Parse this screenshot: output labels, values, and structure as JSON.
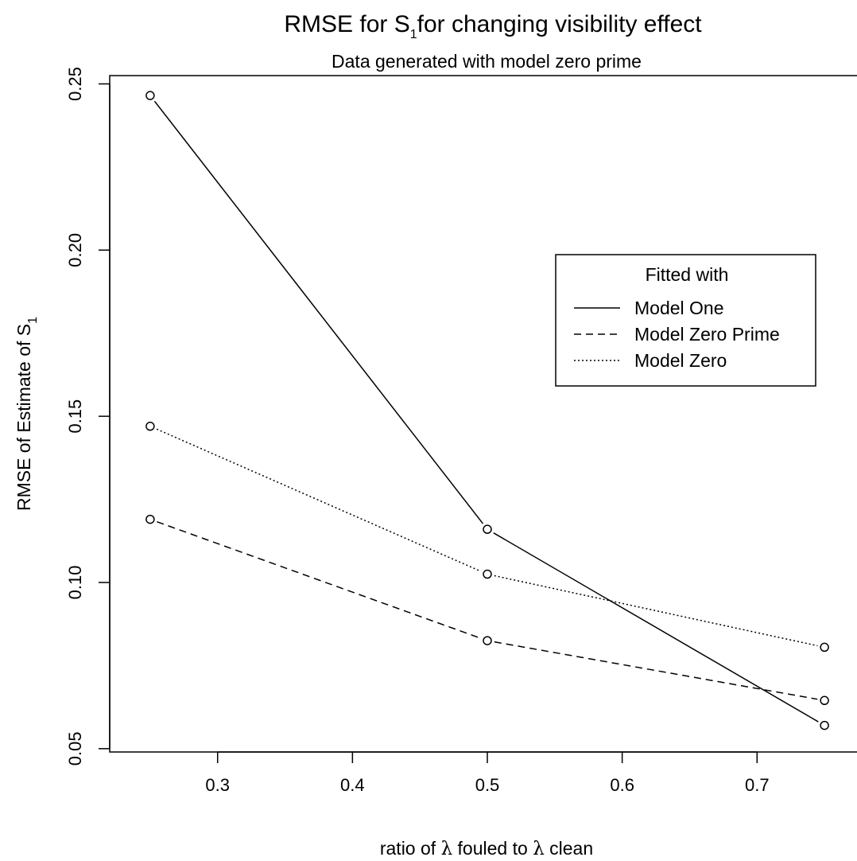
{
  "chart_data": {
    "type": "line",
    "title_parts": [
      "RMSE for S",
      "1",
      "for changing visibility effect"
    ],
    "subtitle": "Data generated with model zero prime",
    "xlabel_parts": [
      "ratio of ",
      "λ",
      " fouled to ",
      "λ",
      " clean"
    ],
    "ylabel_parts": [
      "RMSE of Estimate of S",
      "1"
    ],
    "x": [
      0.25,
      0.5,
      0.75
    ],
    "xlim": [
      0.22,
      0.78
    ],
    "ylim": [
      0.049,
      0.2525
    ],
    "xticks": [
      0.3,
      0.4,
      0.5,
      0.6,
      0.7
    ],
    "xtick_labels": [
      "0.3",
      "0.4",
      "0.5",
      "0.6",
      "0.7"
    ],
    "yticks": [
      0.05,
      0.1,
      0.15,
      0.2,
      0.25
    ],
    "ytick_labels": [
      "0.05",
      "0.10",
      "0.15",
      "0.20",
      "0.25"
    ],
    "series": [
      {
        "name": "Model One",
        "values": [
          0.2465,
          0.116,
          0.057
        ],
        "dash": "solid"
      },
      {
        "name": "Model Zero Prime",
        "values": [
          0.119,
          0.0825,
          0.0645
        ],
        "dash": "dashed"
      },
      {
        "name": "Model Zero",
        "values": [
          0.147,
          0.1025,
          0.0805
        ],
        "dash": "dotted"
      }
    ],
    "legend": {
      "title": "Fitted with",
      "placement": "right"
    },
    "grid": false
  }
}
